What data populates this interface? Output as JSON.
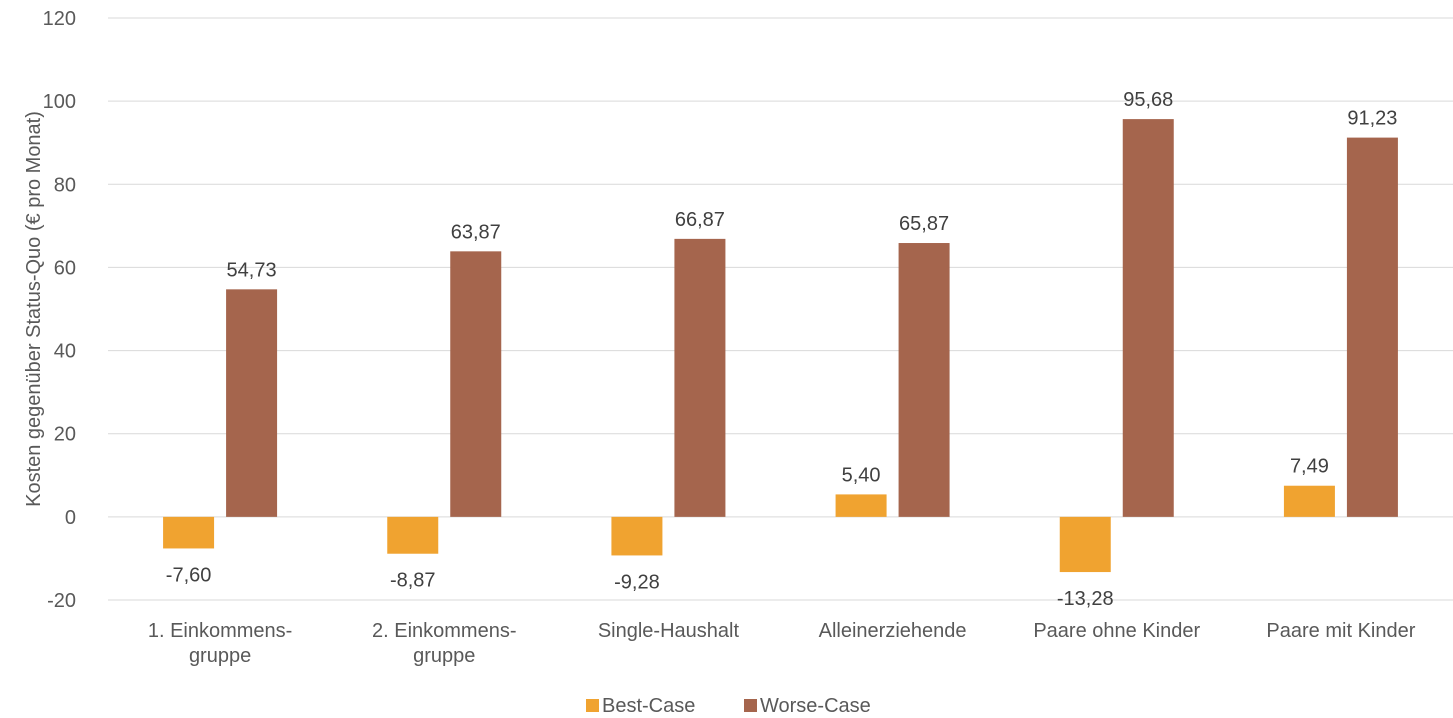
{
  "chart_data": {
    "type": "bar",
    "title": "",
    "xlabel": "",
    "ylabel": "Kosten gegenüber Status-Quo (€ pro Monat)",
    "ylim": [
      -20,
      120
    ],
    "ytick_step": 20,
    "grid": true,
    "legend_position": "bottom",
    "categories": [
      [
        "1. Einkommens-",
        "gruppe"
      ],
      [
        "2. Einkommens-",
        "gruppe"
      ],
      [
        "Single-Haushalt"
      ],
      [
        "Alleinerziehende"
      ],
      [
        "Paare ohne Kinder"
      ],
      [
        "Paare mit Kinder"
      ]
    ],
    "series": [
      {
        "name": "Best-Case",
        "color": "#F0A330",
        "values": [
          -7.6,
          -8.87,
          -9.28,
          5.4,
          -13.28,
          7.49
        ],
        "labels": [
          "-7,60",
          "-8,87",
          "-9,28",
          "5,40",
          "-13,28",
          "7,49"
        ]
      },
      {
        "name": "Worse-Case",
        "color": "#A5654D",
        "values": [
          54.73,
          63.87,
          66.87,
          65.87,
          95.68,
          91.23
        ],
        "labels": [
          "54,73",
          "63,87",
          "66,87",
          "65,87",
          "95,68",
          "91,23"
        ]
      }
    ]
  }
}
